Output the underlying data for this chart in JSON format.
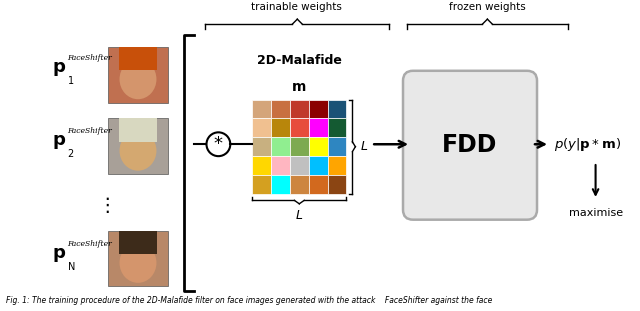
{
  "caption": "Fig. 1: The training procedure of the 2D-Malafide filter on face images generated with the attack    FaceShifter against the face",
  "bg_color": "#ffffff",
  "fdd_box_color": "#e8e8e8",
  "fdd_box_edge": "#aaaaaa",
  "grid_colors": [
    [
      "#d4a57a",
      "#c87040",
      "#c0392b",
      "#8b0000",
      "#1a5276"
    ],
    [
      "#f0c090",
      "#b8860b",
      "#e74c3c",
      "#ff00ff",
      "#145a32"
    ],
    [
      "#c8b080",
      "#90ee90",
      "#7daa50",
      "#ffff00",
      "#2e86c1"
    ],
    [
      "#ffd700",
      "#ffb6c1",
      "#c0c0c0",
      "#00bfff",
      "#ffa500"
    ],
    [
      "#d4a020",
      "#00ffff",
      "#cd853f",
      "#d2691e",
      "#8b4513"
    ]
  ],
  "trainable_label": "trainable weights",
  "frozen_label": "frozen weights",
  "malafide_label": "2D-Malafide",
  "m_label": "m",
  "L_right_label": "L",
  "L_bottom_label": "L",
  "convolution_symbol": "*",
  "fdd_label": "FDD",
  "maximise_label": "maximise",
  "face1": {
    "skin": "#d4956c",
    "hair": "#c8500a",
    "bg": "#c07050"
  },
  "face2": {
    "skin": "#d4a870",
    "hair": "#d8d8c0",
    "bg": "#a8a098"
  },
  "face3": {
    "skin": "#d4956c",
    "hair": "#3d2b1a",
    "bg": "#b88868"
  }
}
